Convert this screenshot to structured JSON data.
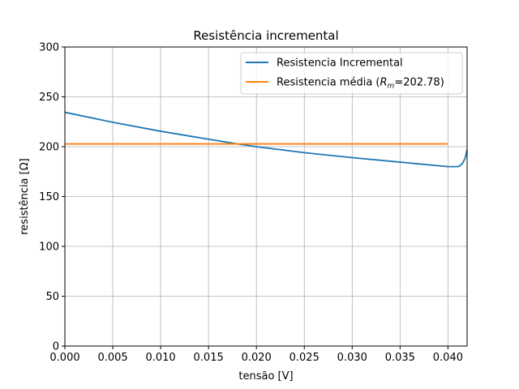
{
  "chart_data": {
    "type": "line",
    "title": "Resistência incremental",
    "xlabel": "tensão [V]",
    "ylabel": "resistência [Ω]",
    "xlim": [
      0,
      0.042
    ],
    "ylim": [
      0,
      300
    ],
    "xticks": [
      0.0,
      0.005,
      0.01,
      0.015,
      0.02,
      0.025,
      0.03,
      0.035,
      0.04
    ],
    "xtick_labels": [
      "0.000",
      "0.005",
      "0.010",
      "0.015",
      "0.020",
      "0.025",
      "0.030",
      "0.035",
      "0.040"
    ],
    "yticks": [
      0,
      50,
      100,
      150,
      200,
      250,
      300
    ],
    "ytick_labels": [
      "0",
      "50",
      "100",
      "150",
      "200",
      "250",
      "300"
    ],
    "grid": true,
    "legend_position": "top-right",
    "series": [
      {
        "name": "Resistencia Incremental",
        "color": "#1f77b4",
        "x": [
          0.0,
          0.005,
          0.01,
          0.015,
          0.018,
          0.02,
          0.025,
          0.03,
          0.035,
          0.04,
          0.041,
          0.0412,
          0.0415,
          0.0418,
          0.042
        ],
        "y": [
          234.5,
          224.5,
          215.5,
          207.5,
          202.8,
          200.0,
          194.0,
          189.0,
          184.5,
          180.0,
          180.0,
          180.5,
          183.0,
          188.5,
          197.0
        ]
      },
      {
        "name": "Resistencia média (R_m=202.78)",
        "label_prefix": "Resistencia média (",
        "label_sym": "R",
        "label_sub": "m",
        "label_suffix": "=202.78)",
        "color": "#ff7f0e",
        "x": [
          0.0,
          0.04
        ],
        "y": [
          202.78,
          202.78
        ]
      }
    ]
  }
}
